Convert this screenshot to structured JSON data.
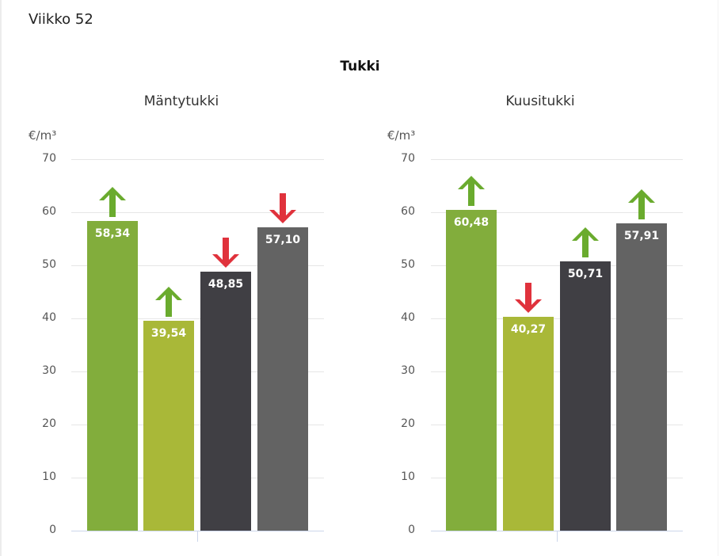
{
  "header": {
    "week_label": "Viikko 52",
    "main_title": "Tukki"
  },
  "colors": {
    "up_arrow": "#6aab2e",
    "down_arrow": "#e0323c",
    "series": [
      "#82ad3c",
      "#a9b838",
      "#403f44",
      "#636363"
    ]
  },
  "chart_data": [
    {
      "type": "bar",
      "title": "Mäntytukki",
      "ylabel": "€/m³",
      "xlabel": "",
      "ylim": [
        0,
        70
      ],
      "yticks": [
        "0",
        "10",
        "20",
        "30",
        "40",
        "50",
        "60",
        "70"
      ],
      "grid": true,
      "values": [
        58.34,
        39.54,
        48.85,
        57.1
      ],
      "labels": [
        "58,34",
        "39,54",
        "48,85",
        "57,10"
      ],
      "trend": [
        "up",
        "up",
        "down",
        "down"
      ]
    },
    {
      "type": "bar",
      "title": "Kuusitukki",
      "ylabel": "€/m³",
      "xlabel": "",
      "ylim": [
        0,
        70
      ],
      "yticks": [
        "0",
        "10",
        "20",
        "30",
        "40",
        "50",
        "60",
        "70"
      ],
      "grid": true,
      "values": [
        60.48,
        40.27,
        50.71,
        57.91
      ],
      "labels": [
        "60,48",
        "40,27",
        "50,71",
        "57,91"
      ],
      "trend": [
        "up",
        "down",
        "up",
        "up"
      ]
    }
  ]
}
